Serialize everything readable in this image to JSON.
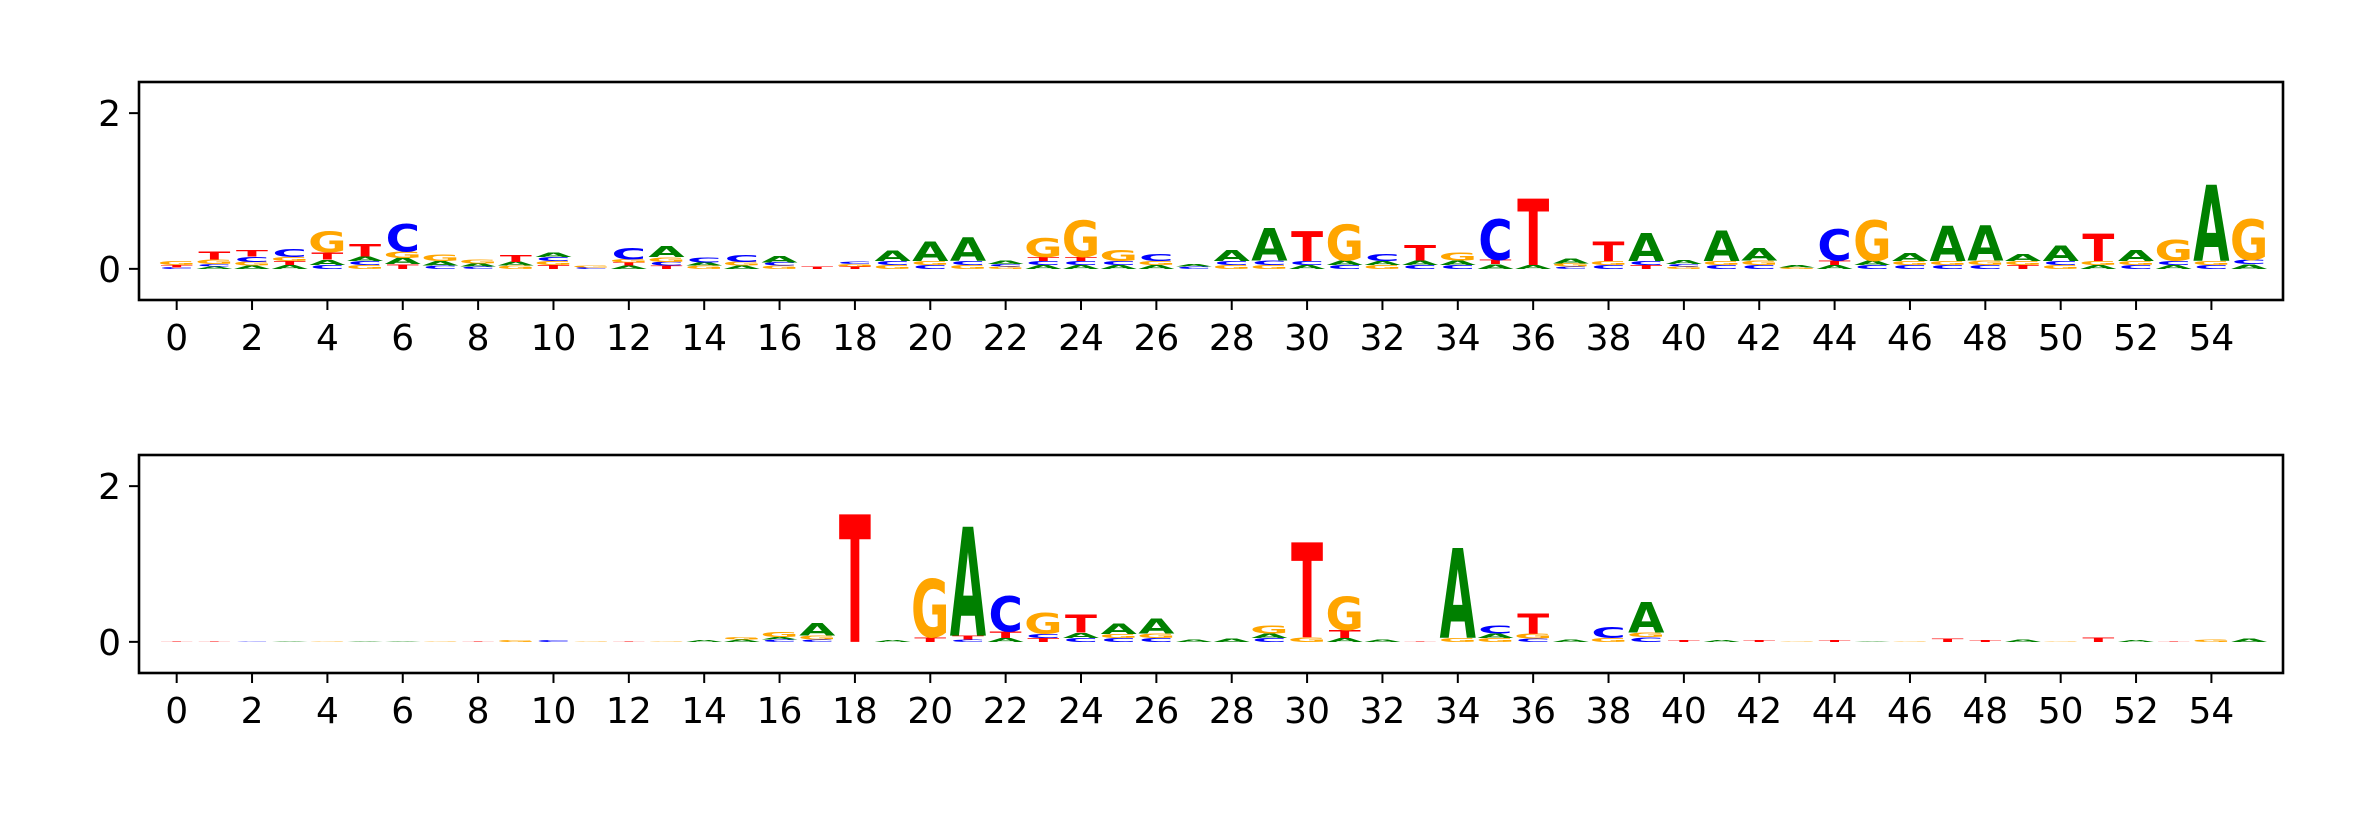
{
  "colors": {
    "A": "#008000",
    "C": "#0000ff",
    "G": "#ffa500",
    "T": "#ff0000",
    "axis": "#000000"
  },
  "chart_data": [
    {
      "type": "sequence_logo",
      "xticks": [
        "0",
        "2",
        "4",
        "6",
        "8",
        "10",
        "12",
        "14",
        "16",
        "18",
        "20",
        "22",
        "24",
        "26",
        "28",
        "30",
        "32",
        "34",
        "36",
        "38",
        "40",
        "42",
        "44",
        "46",
        "48",
        "50",
        "52",
        "54"
      ],
      "yticks": [
        "0",
        "2"
      ],
      "ylim": [
        -0.4,
        2.4
      ],
      "xlim": [
        -1,
        55.9
      ],
      "positions": [
        [
          [
            "T",
            0.03
          ],
          [
            "C",
            0.02
          ],
          [
            "G",
            0.05
          ]
        ],
        [
          [
            "A",
            0.03
          ],
          [
            "C",
            0.03
          ],
          [
            "G",
            0.06
          ],
          [
            "T",
            0.1
          ]
        ],
        [
          [
            "A",
            0.04
          ],
          [
            "G",
            0.05
          ],
          [
            "T",
            0.08
          ],
          [
            "C",
            0.07
          ]
        ],
        [
          [
            "A",
            0.05
          ],
          [
            "T",
            0.05
          ],
          [
            "G",
            0.05
          ],
          [
            "C",
            0.1
          ]
        ],
        [
          [
            "C",
            0.05
          ],
          [
            "A",
            0.07
          ],
          [
            "T",
            0.09
          ],
          [
            "G",
            0.27
          ]
        ],
        [
          [
            "A",
            0.06
          ],
          [
            "G",
            0.05
          ],
          [
            "C",
            0.05
          ],
          [
            "T",
            0.16
          ]
        ],
        [
          [
            "A",
            0.08
          ],
          [
            "T",
            0.06
          ],
          [
            "G",
            0.08
          ],
          [
            "C",
            0.35
          ]
        ],
        [
          [
            "A",
            0.06
          ],
          [
            "C",
            0.04
          ],
          [
            "G",
            0.08
          ]
        ],
        [
          [
            "G",
            0.05
          ],
          [
            "C",
            0.03
          ],
          [
            "A",
            0.04
          ]
        ],
        [
          [
            "A",
            0.05
          ],
          [
            "G",
            0.04
          ],
          [
            "T",
            0.09
          ]
        ],
        [
          [
            "T",
            0.05
          ],
          [
            "G",
            0.05
          ],
          [
            "C",
            0.05
          ],
          [
            "A",
            0.06
          ]
        ],
        [
          [
            "C",
            0.02
          ],
          [
            "G",
            0.02
          ]
        ],
        [
          [
            "A",
            0.04
          ],
          [
            "T",
            0.04
          ],
          [
            "G",
            0.04
          ],
          [
            "C",
            0.15
          ]
        ],
        [
          [
            "T",
            0.04
          ],
          [
            "C",
            0.05
          ],
          [
            "G",
            0.06
          ],
          [
            "A",
            0.14
          ]
        ],
        [
          [
            "G",
            0.04
          ],
          [
            "A",
            0.04
          ],
          [
            "C",
            0.07
          ]
        ],
        [
          [
            "A",
            0.04
          ],
          [
            "G",
            0.05
          ],
          [
            "C",
            0.09
          ]
        ],
        [
          [
            "G",
            0.04
          ],
          [
            "C",
            0.04
          ],
          [
            "A",
            0.08
          ]
        ],
        [
          [
            "T",
            0.03
          ]
        ],
        [
          [
            "T",
            0.03
          ],
          [
            "G",
            0.03
          ],
          [
            "C",
            0.03
          ]
        ],
        [
          [
            "G",
            0.05
          ],
          [
            "C",
            0.05
          ],
          [
            "A",
            0.13
          ]
        ],
        [
          [
            "C",
            0.05
          ],
          [
            "G",
            0.05
          ],
          [
            "A",
            0.25
          ]
        ],
        [
          [
            "G",
            0.05
          ],
          [
            "C",
            0.05
          ],
          [
            "A",
            0.3
          ]
        ],
        [
          [
            "A",
            0.04
          ],
          [
            "G",
            0.03
          ],
          [
            "C",
            0.03
          ]
        ],
        [
          [
            "A",
            0.05
          ],
          [
            "C",
            0.05
          ],
          [
            "T",
            0.05
          ],
          [
            "G",
            0.24
          ]
        ],
        [
          [
            "A",
            0.05
          ],
          [
            "C",
            0.05
          ],
          [
            "T",
            0.05
          ],
          [
            "G",
            0.47
          ]
        ],
        [
          [
            "A",
            0.05
          ],
          [
            "C",
            0.05
          ],
          [
            "G",
            0.14
          ]
        ],
        [
          [
            "A",
            0.05
          ],
          [
            "G",
            0.05
          ],
          [
            "C",
            0.09
          ]
        ],
        [
          [
            "C",
            0.03
          ],
          [
            "A",
            0.03
          ]
        ],
        [
          [
            "G",
            0.05
          ],
          [
            "C",
            0.05
          ],
          [
            "A",
            0.14
          ]
        ],
        [
          [
            "G",
            0.05
          ],
          [
            "C",
            0.06
          ],
          [
            "A",
            0.42
          ]
        ],
        [
          [
            "A",
            0.05
          ],
          [
            "C",
            0.05
          ],
          [
            "T",
            0.38
          ]
        ],
        [
          [
            "A",
            0.06
          ],
          [
            "C",
            0.05
          ],
          [
            "G",
            0.46
          ]
        ],
        [
          [
            "G",
            0.05
          ],
          [
            "A",
            0.05
          ],
          [
            "C",
            0.09
          ]
        ],
        [
          [
            "A",
            0.06
          ],
          [
            "C",
            0.05
          ],
          [
            "T",
            0.2
          ]
        ],
        [
          [
            "A",
            0.06
          ],
          [
            "C",
            0.05
          ],
          [
            "G",
            0.1
          ]
        ],
        [
          [
            "A",
            0.06
          ],
          [
            "T",
            0.06
          ],
          [
            "C",
            0.52
          ]
        ],
        [
          [
            "A",
            0.05
          ],
          [
            "T",
            0.85
          ]
        ],
        [
          [
            "C",
            0.03
          ],
          [
            "G",
            0.04
          ],
          [
            "A",
            0.07
          ]
        ],
        [
          [
            "C",
            0.05
          ],
          [
            "G",
            0.05
          ],
          [
            "T",
            0.25
          ]
        ],
        [
          [
            "T",
            0.05
          ],
          [
            "C",
            0.05
          ],
          [
            "A",
            0.36
          ]
        ],
        [
          [
            "G",
            0.03
          ],
          [
            "C",
            0.03
          ],
          [
            "A",
            0.05
          ]
        ],
        [
          [
            "C",
            0.05
          ],
          [
            "G",
            0.05
          ],
          [
            "A",
            0.39
          ]
        ],
        [
          [
            "G",
            0.06
          ],
          [
            "C",
            0.05
          ],
          [
            "A",
            0.16
          ]
        ],
        [
          [
            "A",
            0.03
          ],
          [
            "G",
            0.02
          ]
        ],
        [
          [
            "A",
            0.05
          ],
          [
            "T",
            0.06
          ],
          [
            "C",
            0.4
          ]
        ],
        [
          [
            "C",
            0.05
          ],
          [
            "A",
            0.06
          ],
          [
            "G",
            0.52
          ]
        ],
        [
          [
            "C",
            0.05
          ],
          [
            "G",
            0.05
          ],
          [
            "A",
            0.1
          ]
        ],
        [
          [
            "C",
            0.05
          ],
          [
            "G",
            0.05
          ],
          [
            "A",
            0.45
          ]
        ],
        [
          [
            "G",
            0.06
          ],
          [
            "C",
            0.05
          ],
          [
            "A",
            0.45
          ]
        ],
        [
          [
            "T",
            0.05
          ],
          [
            "G",
            0.05
          ],
          [
            "A",
            0.09
          ]
        ],
        [
          [
            "G",
            0.05
          ],
          [
            "C",
            0.05
          ],
          [
            "A",
            0.2
          ]
        ],
        [
          [
            "A",
            0.05
          ],
          [
            "G",
            0.05
          ],
          [
            "T",
            0.35
          ]
        ],
        [
          [
            "C",
            0.05
          ],
          [
            "G",
            0.05
          ],
          [
            "A",
            0.14
          ]
        ],
        [
          [
            "A",
            0.05
          ],
          [
            "C",
            0.05
          ],
          [
            "G",
            0.27
          ]
        ],
        [
          [
            "C",
            0.05
          ],
          [
            "G",
            0.05
          ],
          [
            "A",
            0.98
          ]
        ],
        [
          [
            "A",
            0.06
          ],
          [
            "C",
            0.06
          ],
          [
            "G",
            0.52
          ]
        ]
      ]
    },
    {
      "type": "sequence_logo",
      "xticks": [
        "0",
        "2",
        "4",
        "6",
        "8",
        "10",
        "12",
        "14",
        "16",
        "18",
        "20",
        "22",
        "24",
        "26",
        "28",
        "30",
        "32",
        "34",
        "36",
        "38",
        "40",
        "42",
        "44",
        "46",
        "48",
        "50",
        "52",
        "54"
      ],
      "yticks": [
        "0",
        "2"
      ],
      "ylim": [
        -0.4,
        2.4
      ],
      "xlim": [
        -1,
        55.9
      ],
      "positions": [
        [
          [
            "T",
            0.01
          ]
        ],
        [
          [
            "T",
            0.01
          ]
        ],
        [
          [
            "C",
            0.01
          ]
        ],
        [
          [
            "A",
            0.01
          ]
        ],
        [
          [
            "G",
            0.01
          ]
        ],
        [
          [
            "A",
            0.01
          ]
        ],
        [
          [
            "A",
            0.01
          ]
        ],
        [
          [
            "G",
            0.01
          ]
        ],
        [
          [
            "T",
            0.01
          ]
        ],
        [
          [
            "G",
            0.02
          ]
        ],
        [
          [
            "C",
            0.02
          ]
        ],
        [
          [
            "G",
            0.01
          ]
        ],
        [
          [
            "T",
            0.01
          ]
        ],
        [
          [
            "G",
            0.01
          ]
        ],
        [
          [
            "A",
            0.02
          ]
        ],
        [
          [
            "A",
            0.03
          ],
          [
            "G",
            0.03
          ]
        ],
        [
          [
            "C",
            0.03
          ],
          [
            "A",
            0.03
          ],
          [
            "G",
            0.07
          ]
        ],
        [
          [
            "C",
            0.03
          ],
          [
            "G",
            0.05
          ],
          [
            "A",
            0.16
          ]
        ],
        [
          [
            "T",
            1.64
          ]
        ],
        [
          [
            "A",
            0.02
          ]
        ],
        [
          [
            "T",
            0.06
          ],
          [
            "G",
            0.74
          ]
        ],
        [
          [
            "C",
            0.03
          ],
          [
            "T",
            0.05
          ],
          [
            "A",
            1.4
          ]
        ],
        [
          [
            "A",
            0.05
          ],
          [
            "T",
            0.08
          ],
          [
            "C",
            0.45
          ]
        ],
        [
          [
            "T",
            0.05
          ],
          [
            "C",
            0.05
          ],
          [
            "G",
            0.27
          ]
        ],
        [
          [
            "C",
            0.05
          ],
          [
            "A",
            0.07
          ],
          [
            "T",
            0.23
          ]
        ],
        [
          [
            "C",
            0.05
          ],
          [
            "G",
            0.05
          ],
          [
            "A",
            0.13
          ]
        ],
        [
          [
            "C",
            0.05
          ],
          [
            "G",
            0.06
          ],
          [
            "A",
            0.19
          ]
        ],
        [
          [
            "A",
            0.03
          ]
        ],
        [
          [
            "A",
            0.04
          ]
        ],
        [
          [
            "C",
            0.05
          ],
          [
            "A",
            0.06
          ],
          [
            "G",
            0.1
          ]
        ],
        [
          [
            "G",
            0.06
          ],
          [
            "T",
            1.22
          ]
        ],
        [
          [
            "A",
            0.05
          ],
          [
            "T",
            0.1
          ],
          [
            "G",
            0.43
          ]
        ],
        [
          [
            "A",
            0.03
          ]
        ],
        [
          [
            "T",
            0.01
          ]
        ],
        [
          [
            "G",
            0.05
          ],
          [
            "A",
            1.15
          ]
        ],
        [
          [
            "G",
            0.05
          ],
          [
            "A",
            0.06
          ],
          [
            "C",
            0.1
          ]
        ],
        [
          [
            "C",
            0.04
          ],
          [
            "G",
            0.07
          ],
          [
            "T",
            0.26
          ]
        ],
        [
          [
            "A",
            0.03
          ]
        ],
        [
          [
            "G",
            0.05
          ],
          [
            "C",
            0.14
          ]
        ],
        [
          [
            "C",
            0.06
          ],
          [
            "G",
            0.06
          ],
          [
            "A",
            0.39
          ]
        ],
        [
          [
            "T",
            0.02
          ]
        ],
        [
          [
            "A",
            0.02
          ]
        ],
        [
          [
            "T",
            0.02
          ]
        ],
        [
          [
            "G",
            0.01
          ]
        ],
        [
          [
            "T",
            0.02
          ]
        ],
        [
          [
            "A",
            0.01
          ]
        ],
        [
          [
            "G",
            0.01
          ]
        ],
        [
          [
            "T",
            0.04
          ]
        ],
        [
          [
            "T",
            0.02
          ]
        ],
        [
          [
            "A",
            0.03
          ]
        ],
        [
          [
            "G",
            0.01
          ]
        ],
        [
          [
            "T",
            0.06
          ]
        ],
        [
          [
            "A",
            0.02
          ]
        ],
        [
          [
            "T",
            0.01
          ]
        ],
        [
          [
            "G",
            0.03
          ]
        ],
        [
          [
            "A",
            0.04
          ]
        ]
      ]
    }
  ]
}
